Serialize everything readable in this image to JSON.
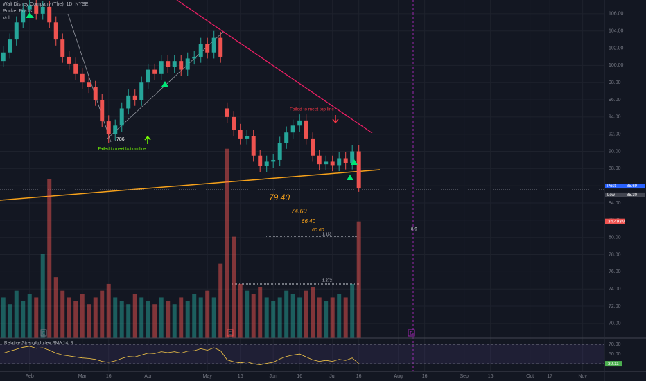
{
  "chart_data": {
    "type": "candlestick",
    "title": "Walt Disney Company (The), 1D, NYSE",
    "indicator_labels": [
      "Pocket Pivots",
      "Vol"
    ],
    "up_color": "#26a69a",
    "down_color": "#ef5350",
    "open": [
      100.5,
      101.5,
      103,
      105,
      106.5,
      107,
      106,
      106.8,
      105,
      103,
      101,
      100.2,
      99,
      98,
      97.5,
      96,
      93.5,
      92,
      93,
      95,
      96.5,
      96,
      98,
      99.5,
      99,
      100.5,
      99.8,
      100.5,
      99.5,
      100.8,
      101,
      102.5,
      101.5,
      103.2,
      95,
      94,
      92.5,
      91.5,
      91.8,
      89.5,
      88.3,
      88.8,
      89,
      91,
      92.2,
      93,
      93.6,
      91.5,
      89.5,
      88.5,
      88.8,
      88.4,
      89.2,
      88.6,
      90
    ],
    "high": [
      102.2,
      103.7,
      105.7,
      107.2,
      107.7,
      107.7,
      107.5,
      107.5,
      105.7,
      103.7,
      101.7,
      100.9,
      99.7,
      98.7,
      98.2,
      96.7,
      94.2,
      93.7,
      95.7,
      97.2,
      97.2,
      98.7,
      100.2,
      100.2,
      101.2,
      101.2,
      101.2,
      101.2,
      101.5,
      101.7,
      103.2,
      103.2,
      104,
      103.9,
      95.7,
      94.7,
      93.2,
      92.5,
      92.5,
      90.2,
      89.5,
      89.7,
      91.7,
      92.9,
      93.7,
      94.3,
      94.3,
      92.2,
      90.2,
      89.5,
      89.5,
      89.9,
      89.9,
      90.7,
      90.7
    ],
    "low": [
      99.8,
      100.8,
      102.3,
      104.3,
      105.8,
      105.3,
      105.3,
      104.3,
      102.3,
      100.3,
      99.5,
      98.3,
      97.3,
      96.8,
      95.3,
      92.8,
      91,
      91.3,
      92.3,
      94.3,
      95.3,
      95.3,
      97.3,
      98.3,
      98.3,
      99.1,
      99.1,
      98.8,
      98.8,
      100.1,
      100.3,
      100.8,
      100.8,
      100.3,
      93.3,
      91.8,
      90.8,
      90.8,
      88.8,
      87.6,
      87.6,
      88.1,
      88.3,
      90.3,
      91.5,
      92.3,
      90.8,
      88.8,
      87.8,
      87.8,
      87.7,
      87.7,
      87.9,
      87.9,
      85.3
    ],
    "close": [
      101.5,
      103,
      105,
      106.5,
      107,
      106,
      106.8,
      105,
      103,
      101,
      100.2,
      99,
      98,
      97.5,
      96,
      93.5,
      92,
      93,
      95,
      96.5,
      96,
      98,
      99.5,
      99,
      100.5,
      99.8,
      100.5,
      99.5,
      100.8,
      101,
      102.5,
      101.5,
      103.2,
      101,
      94,
      92.5,
      91.5,
      91.8,
      89.5,
      88.3,
      88.8,
      89,
      91,
      92.2,
      93,
      93.6,
      91.5,
      89.5,
      88.5,
      88.8,
      88.4,
      89.2,
      88.6,
      90,
      85.69
    ],
    "ylim": [
      68.3,
      107.6
    ],
    "yticks": [
      {
        "value": 70,
        "label": "70.00"
      },
      {
        "value": 72,
        "label": "72.00"
      },
      {
        "value": 74,
        "label": "74.00"
      },
      {
        "value": 76,
        "label": "76.00"
      },
      {
        "value": 78,
        "label": "78.00"
      },
      {
        "value": 80,
        "label": "80.00"
      },
      {
        "value": 82,
        "label": "82.00"
      },
      {
        "value": 84,
        "label": "84.00"
      },
      {
        "value": 86,
        "label": "86.00"
      },
      {
        "value": 88,
        "label": "88.00"
      },
      {
        "value": 90,
        "label": "90.00"
      },
      {
        "value": 92,
        "label": "92.00"
      },
      {
        "value": 94,
        "label": "94.00"
      },
      {
        "value": 96,
        "label": "96.00"
      },
      {
        "value": 98,
        "label": "98.00"
      },
      {
        "value": 100,
        "label": "100.00"
      },
      {
        "value": 102,
        "label": "102.00"
      },
      {
        "value": 104,
        "label": "104.00"
      },
      {
        "value": 106,
        "label": "106.00"
      }
    ],
    "xlim": [
      -0.5,
      91.3
    ],
    "xticks": [
      {
        "value": 4,
        "label": "Feb"
      },
      {
        "value": 12,
        "label": "Mar"
      },
      {
        "value": 16,
        "label": "16"
      },
      {
        "value": 22,
        "label": "Apr"
      },
      {
        "value": 31,
        "label": "May"
      },
      {
        "value": 36,
        "label": "16"
      },
      {
        "value": 41,
        "label": "Jun"
      },
      {
        "value": 45,
        "label": "16"
      },
      {
        "value": 50,
        "label": "Jul"
      },
      {
        "value": 54,
        "label": "16"
      },
      {
        "value": 60,
        "label": "Aug"
      },
      {
        "value": 64,
        "label": "16"
      },
      {
        "value": 70,
        "label": "Sep"
      },
      {
        "value": 74,
        "label": "16"
      },
      {
        "value": 80,
        "label": "Oct"
      },
      {
        "value": 83,
        "label": "17"
      },
      {
        "value": 88,
        "label": "Nov"
      }
    ],
    "grid": true,
    "post": {
      "label": "Post",
      "value": 85.69
    },
    "session_low": {
      "label": "Low",
      "value": {
        "value": 85.3,
        "label": "85.30"
      }
    },
    "volume": {
      "ylim": [
        0,
        100
      ],
      "values": [
        12,
        10,
        14,
        11,
        13,
        12,
        25,
        47,
        18,
        14,
        12,
        11,
        13,
        10,
        12,
        14,
        16,
        12,
        11,
        10,
        13,
        12,
        11,
        10,
        12,
        11,
        10,
        12,
        11,
        13,
        12,
        14,
        12,
        22,
        56,
        30,
        16,
        14,
        13,
        15,
        12,
        11,
        12,
        14,
        13,
        12,
        14,
        15,
        12,
        11,
        12,
        13,
        12,
        16,
        34.493
      ],
      "last_label": "34.493M"
    },
    "rsi": {
      "name": "Relative Strength Index SMA 14, 3",
      "ylim": [
        16,
        80
      ],
      "values": [
        52,
        56,
        60,
        64,
        66,
        62,
        63,
        58,
        52,
        48,
        46,
        44,
        42,
        41,
        39,
        35,
        33,
        36,
        41,
        45,
        44,
        48,
        52,
        51,
        55,
        53,
        55,
        52,
        56,
        57,
        61,
        58,
        63,
        57,
        38,
        34,
        32,
        34,
        30,
        28,
        31,
        33,
        40,
        45,
        48,
        50,
        44,
        38,
        35,
        37,
        35,
        39,
        37,
        42,
        30.11
      ],
      "yticks": [
        {
          "value": 70,
          "label": "70.00"
        },
        {
          "value": 50,
          "label": "50.00"
        }
      ],
      "band": [
        30,
        70
      ]
    },
    "annotations": [
      "Failed to meet top line",
      "Failed to meet bottom line",
      ".786",
      "79.40",
      "74.60",
      "66.40",
      "60.60",
      "1.113",
      "1.272",
      "8-9"
    ]
  }
}
